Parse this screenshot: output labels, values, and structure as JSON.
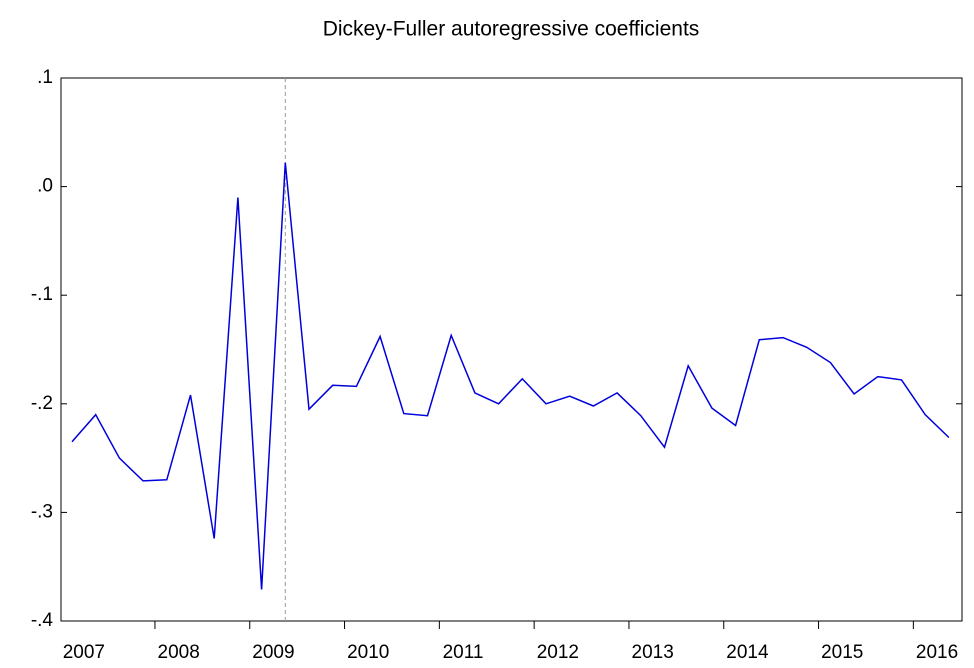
{
  "chart_data": {
    "type": "line",
    "title": "Dickey-Fuller autoregressive coefficients",
    "categories": [
      "2007",
      null,
      null,
      null,
      "2008",
      null,
      null,
      null,
      "2009",
      null,
      null,
      null,
      "2010",
      null,
      null,
      null,
      "2011",
      null,
      null,
      null,
      "2012",
      null,
      null,
      null,
      "2013",
      null,
      null,
      null,
      "2014",
      null,
      null,
      null,
      "2015",
      null,
      null,
      null,
      "2016",
      null
    ],
    "series": [
      {
        "name": "Dickey-Fuller autoregressive coefficients",
        "color": "#0000dd",
        "values": [
          -0.235,
          -0.21,
          -0.25,
          -0.271,
          -0.27,
          -0.192,
          -0.324,
          -0.01,
          -0.371,
          0.022,
          -0.205,
          -0.183,
          -0.184,
          -0.138,
          -0.209,
          -0.211,
          -0.137,
          -0.19,
          -0.2,
          -0.177,
          -0.2,
          -0.193,
          -0.202,
          -0.19,
          -0.211,
          -0.24,
          -0.165,
          -0.204,
          -0.22,
          -0.141,
          -0.139,
          -0.148,
          -0.162,
          -0.191,
          -0.175,
          -0.178,
          -0.21,
          -0.231
        ]
      }
    ],
    "ylim": [
      -0.4,
      0.1
    ],
    "yticks": [
      {
        "value": -0.4,
        "label": "-.4"
      },
      {
        "value": -0.3,
        "label": "-.3"
      },
      {
        "value": -0.2,
        "label": "-.2"
      },
      {
        "value": -0.1,
        "label": "-.1"
      },
      {
        "value": 0,
        "label": ".0"
      },
      {
        "value": 0.1,
        "label": ".1"
      }
    ],
    "reference_line_x": 9
  }
}
